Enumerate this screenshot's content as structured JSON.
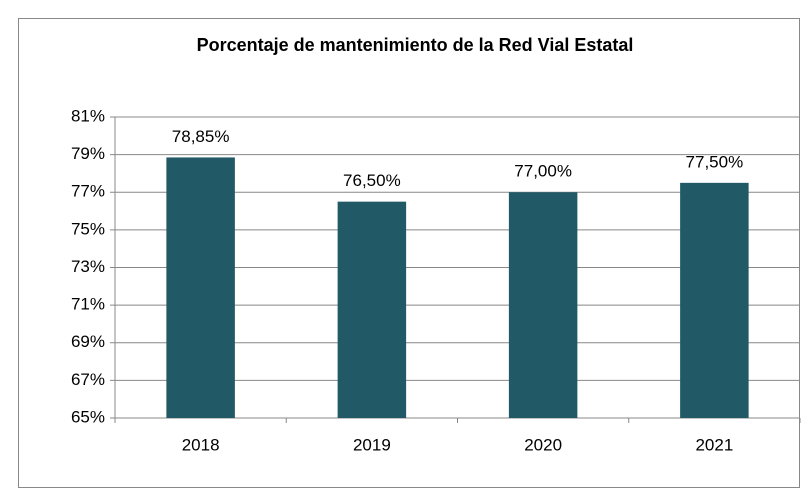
{
  "chart_data": {
    "type": "bar",
    "title": "Porcentaje de mantenimiento de la Red Vial Estatal",
    "categories": [
      "2018",
      "2019",
      "2020",
      "2021"
    ],
    "values": [
      78.85,
      76.5,
      77,
      77.5
    ],
    "value_labels": [
      "78,85%",
      "76,50%",
      "77,00%",
      "77,50%"
    ],
    "color": "#215967",
    "ylim": [
      65,
      81
    ],
    "yticks": [
      {
        "value": 65,
        "label": "65%"
      },
      {
        "value": 67,
        "label": "67%"
      },
      {
        "value": 69,
        "label": "69%"
      },
      {
        "value": 71,
        "label": "71%"
      },
      {
        "value": 73,
        "label": "73%"
      },
      {
        "value": 75,
        "label": "75%"
      },
      {
        "value": 77,
        "label": "77%"
      },
      {
        "value": 79,
        "label": "79%"
      },
      {
        "value": 81,
        "label": "81%"
      }
    ],
    "grid": true
  }
}
